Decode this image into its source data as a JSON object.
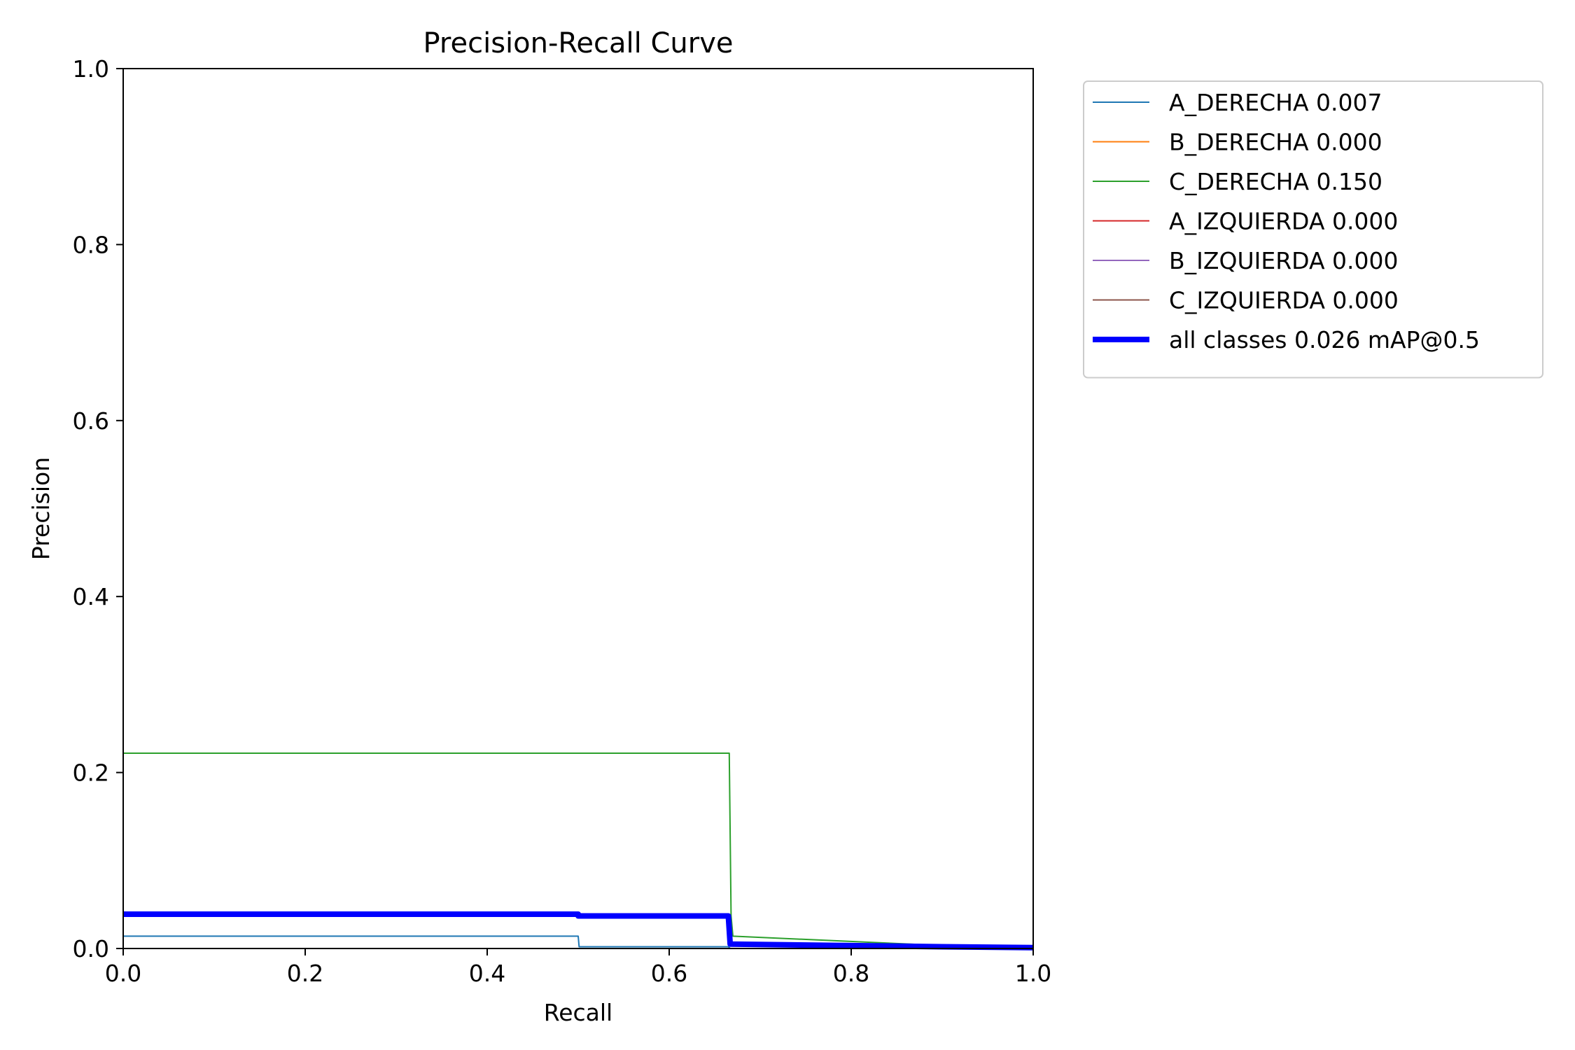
{
  "chart_data": {
    "type": "line",
    "title": "Precision-Recall Curve",
    "xlabel": "Recall",
    "ylabel": "Precision",
    "xlim": [
      0.0,
      1.0
    ],
    "ylim": [
      0.0,
      1.0
    ],
    "x_ticks": [
      "0.0",
      "0.2",
      "0.4",
      "0.6",
      "0.8",
      "1.0"
    ],
    "y_ticks": [
      "0.0",
      "0.2",
      "0.4",
      "0.6",
      "0.8",
      "1.0"
    ],
    "grid": false,
    "legend_position": "outside-top-right",
    "series": [
      {
        "name": "A_DERECHA 0.007",
        "color": "#1f77b4",
        "linewidth": 2,
        "x": [
          0.0,
          0.5,
          0.501,
          0.665,
          0.667,
          1.0
        ],
        "y": [
          0.014,
          0.014,
          0.002,
          0.002,
          0.0,
          0.0
        ]
      },
      {
        "name": "B_DERECHA 0.000",
        "color": "#ff7f0e",
        "linewidth": 2,
        "x": [
          0.0,
          1.0
        ],
        "y": [
          0.0,
          0.0
        ]
      },
      {
        "name": "C_DERECHA 0.150",
        "color": "#2ca02c",
        "linewidth": 2,
        "x": [
          0.0,
          0.666,
          0.668,
          0.67,
          0.93,
          1.0
        ],
        "y": [
          0.222,
          0.222,
          0.037,
          0.014,
          0.002,
          0.001
        ]
      },
      {
        "name": "A_IZQUIERDA 0.000",
        "color": "#d62728",
        "linewidth": 2,
        "x": [
          0.0,
          1.0
        ],
        "y": [
          0.0,
          0.0
        ]
      },
      {
        "name": "B_IZQUIERDA 0.000",
        "color": "#9467bd",
        "linewidth": 2,
        "x": [
          0.0,
          1.0
        ],
        "y": [
          0.0,
          0.0
        ]
      },
      {
        "name": "C_IZQUIERDA 0.000",
        "color": "#8c564b",
        "linewidth": 2,
        "x": [
          0.0,
          1.0
        ],
        "y": [
          0.0,
          0.0
        ]
      },
      {
        "name": "all classes 0.026 mAP@0.5",
        "color": "#0000ff",
        "linewidth": 8,
        "x": [
          0.0,
          0.5,
          0.5,
          0.665,
          0.667,
          0.9,
          1.0
        ],
        "y": [
          0.039,
          0.039,
          0.037,
          0.037,
          0.005,
          0.002,
          0.001
        ]
      }
    ]
  }
}
